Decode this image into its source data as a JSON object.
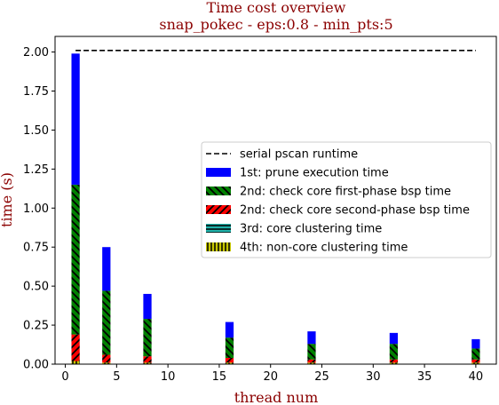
{
  "chart_data": {
    "type": "bar",
    "title": "Time cost overview",
    "subtitle": "snap_pokec - eps:0.8 - min_pts:5",
    "xlabel": "thread num",
    "ylabel": "time (s)",
    "xlim": [
      -1,
      42
    ],
    "ylim": [
      0,
      2.1
    ],
    "xticks": [
      0,
      5,
      10,
      15,
      20,
      25,
      30,
      35,
      40
    ],
    "yticks": [
      0.0,
      0.25,
      0.5,
      0.75,
      1.0,
      1.25,
      1.5,
      1.75,
      2.0
    ],
    "xtick_labels": [
      "0",
      "5",
      "10",
      "15",
      "20",
      "25",
      "30",
      "35",
      "40"
    ],
    "ytick_labels": [
      "0.00",
      "0.25",
      "0.50",
      "0.75",
      "1.00",
      "1.25",
      "1.50",
      "1.75",
      "2.00"
    ],
    "x": [
      1,
      4,
      8,
      16,
      24,
      32,
      40
    ],
    "stacked": true,
    "legend_position": "center-right",
    "serial_line": {
      "name": "serial pscan runtime",
      "value": 2.01,
      "x_range": [
        1,
        40
      ],
      "color": "#000000",
      "style": "dashed"
    },
    "series": [
      {
        "name": "4th: non-core clustering time",
        "color": "#c8c800",
        "hatch": "vertical",
        "values": [
          0.02,
          0.01,
          0.01,
          0.01,
          0.01,
          0.01,
          0.01
        ]
      },
      {
        "name": "3rd: core clustering time",
        "color": "#20b2aa",
        "hatch": "horizontal",
        "values": [
          0.0,
          0.0,
          0.0,
          0.0,
          0.0,
          0.0,
          0.0
        ]
      },
      {
        "name": "2nd: check core second-phase bsp time",
        "color": "#ff0000",
        "hatch": "diagonal",
        "values": [
          0.17,
          0.05,
          0.04,
          0.03,
          0.02,
          0.02,
          0.02
        ]
      },
      {
        "name": "2nd: check core first-phase bsp time",
        "color": "#008000",
        "hatch": "backdiagonal",
        "values": [
          0.96,
          0.41,
          0.24,
          0.13,
          0.1,
          0.1,
          0.07
        ]
      },
      {
        "name": "1st: prune execution time",
        "color": "#0000ff",
        "hatch": "none",
        "values": [
          0.84,
          0.28,
          0.16,
          0.1,
          0.08,
          0.07,
          0.06
        ]
      }
    ]
  }
}
